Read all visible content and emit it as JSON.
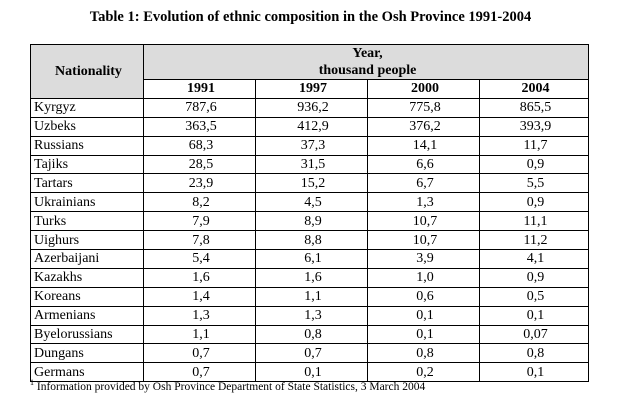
{
  "title": "Table 1: Evolution of ethnic composition in the Osh Province 1991-2004",
  "header": {
    "nationality": "Nationality",
    "group_line1": "Year,",
    "group_line2": "thousand people",
    "years": [
      "1991",
      "1997",
      "2000",
      "2004"
    ]
  },
  "rows": [
    {
      "name": "Kyrgyz",
      "values": [
        "787,6",
        "936,2",
        "775,8",
        "865,5"
      ]
    },
    {
      "name": "Uzbeks",
      "values": [
        "363,5",
        "412,9",
        "376,2",
        "393,9"
      ]
    },
    {
      "name": "Russians",
      "values": [
        "68,3",
        "37,3",
        "14,1",
        "11,7"
      ]
    },
    {
      "name": "Tajiks",
      "values": [
        "28,5",
        "31,5",
        "6,6",
        "0,9"
      ]
    },
    {
      "name": "Tartars",
      "values": [
        "23,9",
        "15,2",
        "6,7",
        "5,5"
      ]
    },
    {
      "name": "Ukrainians",
      "values": [
        "8,2",
        "4,5",
        "1,3",
        "0,9"
      ]
    },
    {
      "name": "Turks",
      "values": [
        "7,9",
        "8,9",
        "10,7",
        "11,1"
      ]
    },
    {
      "name": "Uighurs",
      "values": [
        "7,8",
        "8,8",
        "10,7",
        "11,2"
      ]
    },
    {
      "name": "Azerbaijani",
      "values": [
        "5,4",
        "6,1",
        "3,9",
        "4,1"
      ]
    },
    {
      "name": "Kazakhs",
      "values": [
        "1,6",
        "1,6",
        "1,0",
        "0,9"
      ]
    },
    {
      "name": "Koreans",
      "values": [
        "1,4",
        "1,1",
        "0,6",
        "0,5"
      ]
    },
    {
      "name": "Armenians",
      "values": [
        "1,3",
        "1,3",
        "0,1",
        "0,1"
      ]
    },
    {
      "name": "Byelorussians",
      "values": [
        "1,1",
        "0,8",
        "0,1",
        "0,07"
      ]
    },
    {
      "name": "Dungans",
      "values": [
        "0,7",
        "0,7",
        "0,8",
        "0,8"
      ]
    },
    {
      "name": "Germans",
      "values": [
        "0,7",
        "0,1",
        "0,2",
        "0,1"
      ]
    }
  ],
  "footnote": {
    "marker": "1",
    "text": "Information provided by Osh Province Department of State Statistics, 3 March 2004"
  }
}
